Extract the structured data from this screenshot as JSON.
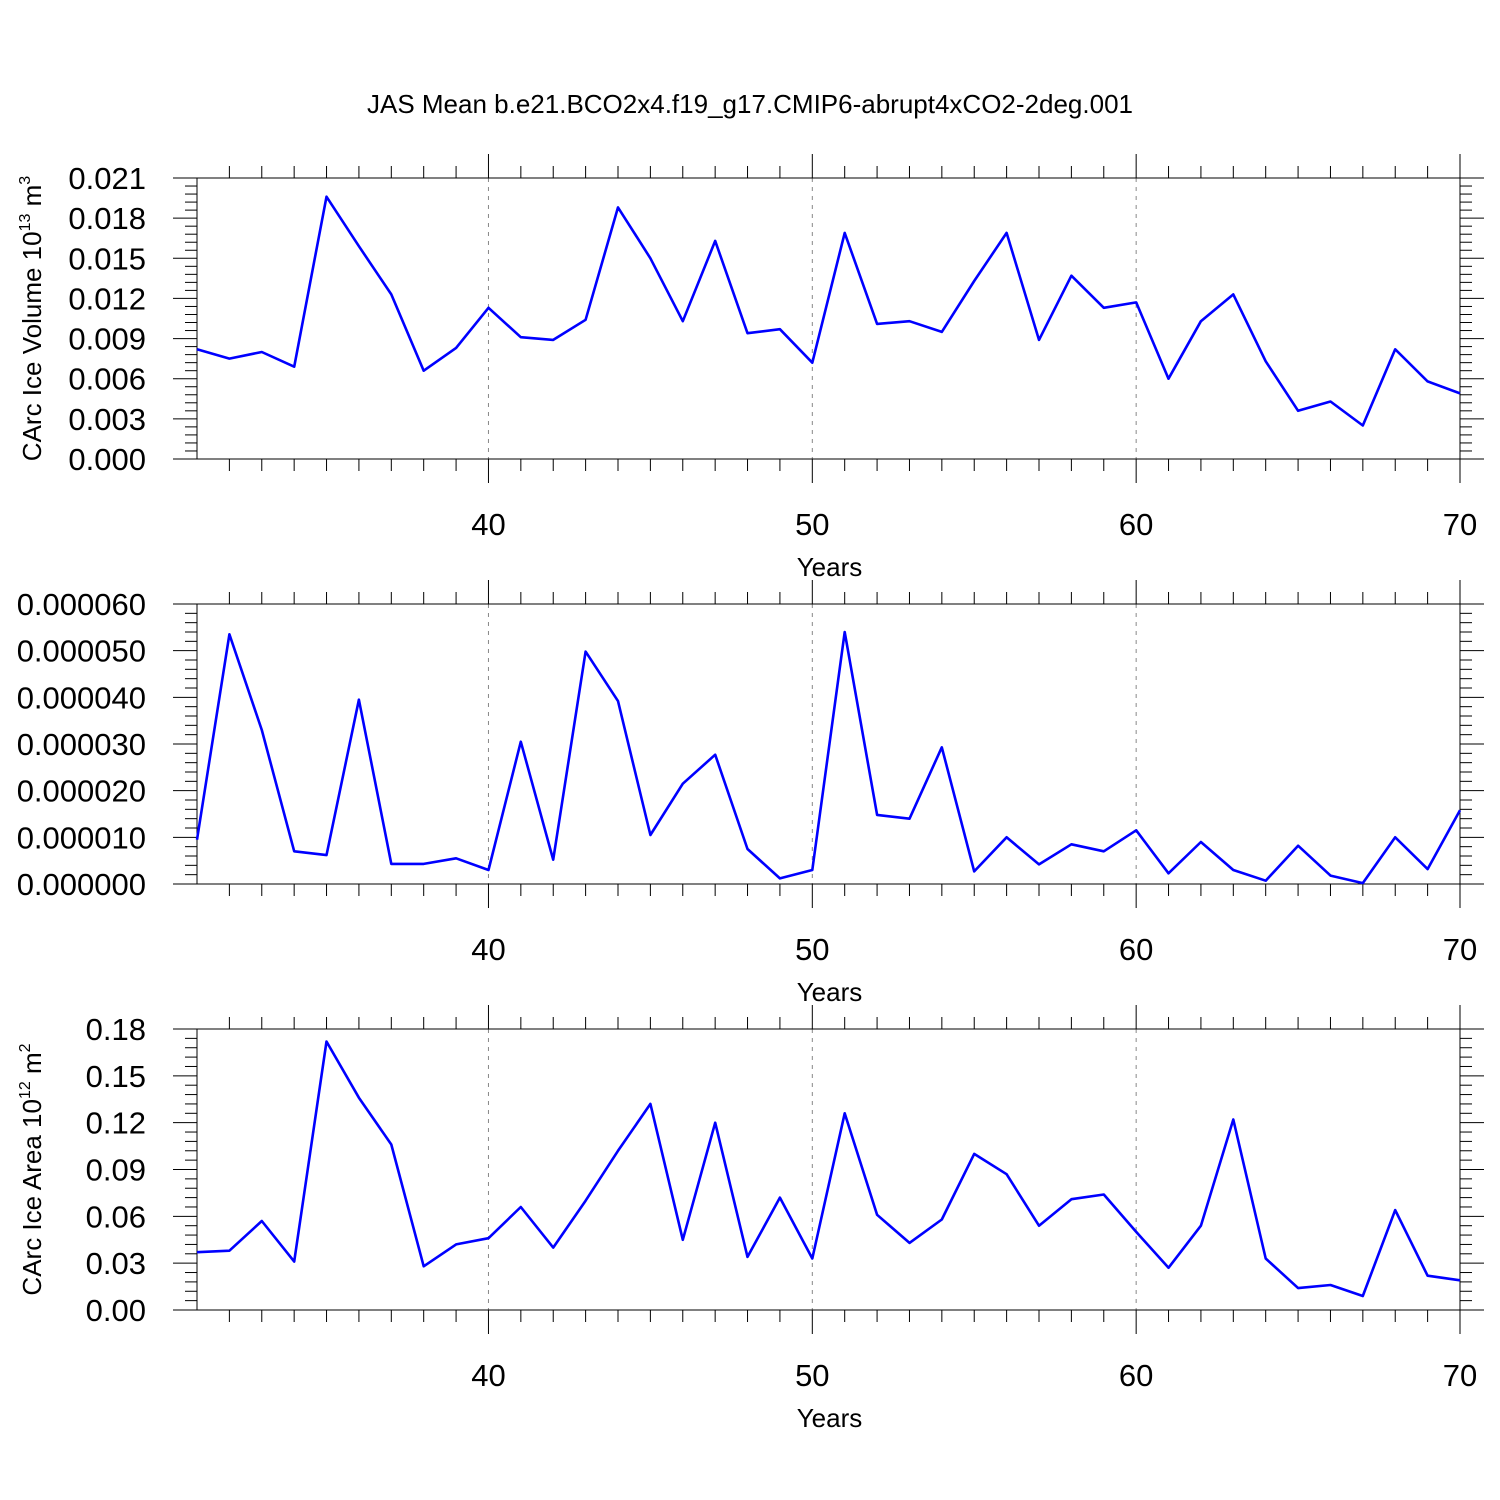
{
  "title": "JAS Mean b.e21.BCO2x4.f19_g17.CMIP6-abrupt4xCO2-2deg.001",
  "colors": {
    "line": "#0000ff",
    "axis": "#000000",
    "grid": "#888888"
  },
  "chart_data": [
    {
      "type": "line",
      "title": "JAS Mean b.e21.BCO2x4.f19_g17.CMIP6-abrupt4xCO2-2deg.001",
      "xlabel": "Years",
      "ylabel": {
        "text": "CArc Ice Volume 10",
        "sup": "13",
        "unit": " m",
        "unit_sup": "3"
      },
      "xlim": [
        31,
        70
      ],
      "ylim": [
        0,
        0.021
      ],
      "xticks": [
        "40",
        "50",
        "60",
        "70"
      ],
      "yticks": [
        "0.000",
        "0.003",
        "0.006",
        "0.009",
        "0.012",
        "0.015",
        "0.018",
        "0.021"
      ],
      "grid": "vertical dashed at major x ticks",
      "x": [
        31,
        32,
        33,
        34,
        35,
        36,
        37,
        38,
        39,
        40,
        41,
        42,
        43,
        44,
        45,
        46,
        47,
        48,
        49,
        50,
        51,
        52,
        53,
        54,
        55,
        56,
        57,
        58,
        59,
        60,
        61,
        62,
        63,
        64,
        65,
        66,
        67,
        68,
        69,
        70
      ],
      "series": [
        {
          "values": [
            0.0082,
            0.0075,
            0.008,
            0.0069,
            0.0196,
            0.0159,
            0.0123,
            0.0066,
            0.0083,
            0.0113,
            0.0091,
            0.0089,
            0.0104,
            0.0188,
            0.015,
            0.0103,
            0.0163,
            0.0094,
            0.0097,
            0.0072,
            0.0169,
            0.0101,
            0.0103,
            0.0095,
            0.0133,
            0.0169,
            0.0089,
            0.0137,
            0.0113,
            0.0117,
            0.006,
            0.0103,
            0.0123,
            0.0073,
            0.0036,
            0.0043,
            0.0025,
            0.0082,
            0.0058,
            0.0049
          ]
        }
      ]
    },
    {
      "type": "line",
      "xlabel": "Years",
      "xlim": [
        31,
        70
      ],
      "ylim": [
        0,
        6e-05
      ],
      "xticks": [
        "40",
        "50",
        "60",
        "70"
      ],
      "yticks": [
        "0.000000",
        "0.000010",
        "0.000020",
        "0.000030",
        "0.000040",
        "0.000050",
        "0.000060"
      ],
      "grid": "vertical dashed at major x ticks",
      "x": [
        31,
        32,
        33,
        34,
        35,
        36,
        37,
        38,
        39,
        40,
        41,
        42,
        43,
        44,
        45,
        46,
        47,
        48,
        49,
        50,
        51,
        52,
        53,
        54,
        55,
        56,
        57,
        58,
        59,
        60,
        61,
        62,
        63,
        64,
        65,
        66,
        67,
        68,
        69,
        70
      ],
      "series": [
        {
          "values": [
            9.5e-06,
            5.35e-05,
            3.3e-05,
            7e-06,
            6.2e-06,
            3.95e-05,
            4.3e-06,
            4.3e-06,
            5.5e-06,
            3e-06,
            3.05e-05,
            5.2e-06,
            4.98e-05,
            3.92e-05,
            1.05e-05,
            2.15e-05,
            2.77e-05,
            7.5e-06,
            1.2e-06,
            3e-06,
            5.4e-05,
            1.48e-05,
            1.4e-05,
            2.93e-05,
            2.7e-06,
            1e-05,
            4.2e-06,
            8.5e-06,
            7e-06,
            1.15e-05,
            2.3e-06,
            9e-06,
            3e-06,
            7e-07,
            8.2e-06,
            1.8e-06,
            2e-07,
            1e-05,
            3.2e-06,
            1.58e-05
          ]
        }
      ]
    },
    {
      "type": "line",
      "xlabel": "Years",
      "ylabel": {
        "text": "CArc Ice Area 10",
        "sup": "12",
        "unit": " m",
        "unit_sup": "2"
      },
      "xlim": [
        31,
        70
      ],
      "ylim": [
        0,
        0.18
      ],
      "xticks": [
        "40",
        "50",
        "60",
        "70"
      ],
      "yticks": [
        "0.00",
        "0.03",
        "0.06",
        "0.09",
        "0.12",
        "0.15",
        "0.18"
      ],
      "grid": "vertical dashed at major x ticks",
      "x": [
        31,
        32,
        33,
        34,
        35,
        36,
        37,
        38,
        39,
        40,
        41,
        42,
        43,
        44,
        45,
        46,
        47,
        48,
        49,
        50,
        51,
        52,
        53,
        54,
        55,
        56,
        57,
        58,
        59,
        60,
        61,
        62,
        63,
        64,
        65,
        66,
        67,
        68,
        69,
        70
      ],
      "series": [
        {
          "values": [
            0.037,
            0.038,
            0.057,
            0.031,
            0.172,
            0.136,
            0.106,
            0.028,
            0.042,
            0.046,
            0.066,
            0.04,
            0.07,
            0.102,
            0.132,
            0.045,
            0.12,
            0.034,
            0.072,
            0.033,
            0.126,
            0.061,
            0.043,
            0.058,
            0.1,
            0.087,
            0.054,
            0.071,
            0.074,
            0.05,
            0.027,
            0.054,
            0.122,
            0.033,
            0.014,
            0.016,
            0.009,
            0.064,
            0.022,
            0.019
          ]
        }
      ]
    }
  ]
}
